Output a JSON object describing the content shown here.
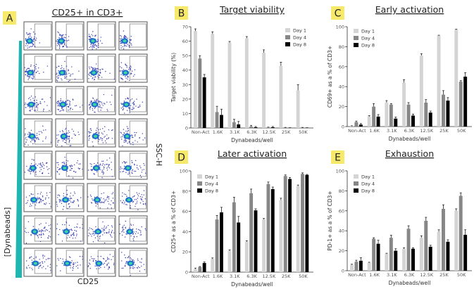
{
  "panel_a": {
    "letter": "A",
    "title": "CD25+ in CD3+",
    "x_label": "CD25",
    "y_label": "SSC-H",
    "gradient_label": "[Dynabeads]",
    "rows": 8,
    "columns": 4,
    "accent_color": "#1fb5b0"
  },
  "colors": {
    "day1": "#d4d4d4",
    "day4": "#878787",
    "day8": "#000000",
    "letter_bg": "#f7ea6a"
  },
  "chart_data": [
    {
      "panel": "B",
      "type": "bar",
      "title": "Target viability",
      "xlabel": "Dynabeads/well",
      "ylabel": "Target viability (%)",
      "ylim": [
        0,
        70
      ],
      "yticks": [
        0,
        10,
        20,
        30,
        40,
        50,
        60,
        70
      ],
      "categories": [
        "Non-Act",
        "1.6K",
        "3.1K",
        "6.3K",
        "12.5K",
        "25K",
        "50K"
      ],
      "legend": "top-right",
      "series": [
        {
          "name": "Day 1",
          "values": [
            67,
            65,
            59,
            62,
            52,
            43,
            26
          ],
          "errors": [
            1.5,
            1.5,
            0.8,
            1.2,
            2,
            2.5,
            4
          ]
        },
        {
          "name": "Day 4",
          "values": [
            48,
            11,
            4,
            1,
            0.3,
            0.2,
            0.2
          ],
          "errors": [
            2,
            4,
            2,
            0.8,
            0.3,
            0.2,
            0.2
          ]
        },
        {
          "name": "Day 8",
          "values": [
            35,
            9,
            2.5,
            0.5,
            0.5,
            0.1,
            0.1
          ],
          "errors": [
            2,
            4,
            2,
            0.5,
            0.5,
            0.1,
            0.1
          ]
        }
      ]
    },
    {
      "panel": "C",
      "type": "bar",
      "title": "Early activation",
      "xlabel": "Dynabeads/well",
      "ylabel": "CD69+ as a % of CD3+",
      "ylim": [
        0,
        100
      ],
      "yticks": [
        0,
        20,
        40,
        60,
        80,
        100
      ],
      "categories": [
        "Non-Act",
        "1.6K",
        "3.1K",
        "6.3K",
        "12.5K",
        "25K",
        "50K"
      ],
      "legend": "top-left",
      "series": [
        {
          "name": "Day 1",
          "values": [
            0.5,
            10,
            24,
            44,
            71,
            91,
            97
          ],
          "errors": [
            0.3,
            1,
            2,
            3,
            2,
            0.5,
            0.5
          ]
        },
        {
          "name": "Day 4",
          "values": [
            4.5,
            20,
            22,
            22,
            24,
            32,
            45
          ],
          "errors": [
            1,
            3,
            1,
            2,
            3,
            4,
            1
          ]
        },
        {
          "name": "Day 8",
          "values": [
            2,
            10,
            8,
            11,
            14,
            26,
            50
          ],
          "errors": [
            1,
            2,
            1.5,
            1.5,
            1.5,
            3,
            4
          ]
        }
      ]
    },
    {
      "panel": "D",
      "type": "bar",
      "title": "Later activation",
      "xlabel": "Dynabeads/well",
      "ylabel": "CD25+ as a % of CD3+",
      "ylim": [
        0,
        100
      ],
      "yticks": [
        0,
        20,
        40,
        60,
        80,
        100
      ],
      "categories": [
        "Non-Act",
        "1.6K",
        "3.1K",
        "6.3K",
        "12.5K",
        "25K",
        "50K"
      ],
      "legend": "top-left",
      "series": [
        {
          "name": "Day 1",
          "values": [
            3,
            13,
            21,
            30,
            52,
            71,
            85
          ],
          "errors": [
            1,
            1,
            1,
            1,
            1,
            2,
            1
          ]
        },
        {
          "name": "Day 4",
          "values": [
            5,
            52,
            69,
            78,
            87,
            95,
            97
          ],
          "errors": [
            0.5,
            4,
            5,
            4,
            2,
            1,
            1
          ]
        },
        {
          "name": "Day 8",
          "values": [
            9,
            59,
            49,
            61,
            82,
            92,
            96
          ],
          "errors": [
            1,
            5,
            6,
            1.5,
            2,
            1.5,
            0.5
          ]
        }
      ]
    },
    {
      "panel": "E",
      "type": "bar",
      "title": "Exhaustion",
      "xlabel": "Dynabeads/well",
      "ylabel": "PD-1+ as a % of CD3+",
      "ylim": [
        0,
        100
      ],
      "yticks": [
        0,
        20,
        40,
        60,
        80,
        100
      ],
      "categories": [
        "Non-Act",
        "1.6K",
        "3.1K",
        "6.3K",
        "12.5K",
        "25K",
        "50K"
      ],
      "legend": "top-left",
      "series": [
        {
          "name": "Day 1",
          "values": [
            6,
            8,
            17,
            22,
            33,
            39,
            60
          ],
          "errors": [
            0.5,
            0.5,
            0.5,
            1,
            2,
            2,
            2
          ]
        },
        {
          "name": "Day 4",
          "values": [
            9,
            32,
            33,
            42,
            50,
            62,
            75
          ],
          "errors": [
            1.5,
            1,
            2.5,
            3,
            3.5,
            4,
            3
          ]
        },
        {
          "name": "Day 8",
          "values": [
            10,
            27,
            20,
            22,
            24,
            29,
            36
          ],
          "errors": [
            3,
            3.5,
            2,
            1,
            1.5,
            2,
            5
          ]
        }
      ]
    }
  ]
}
